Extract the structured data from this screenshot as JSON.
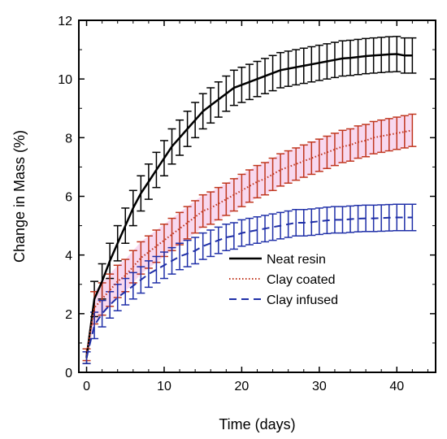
{
  "chart_data": {
    "type": "line",
    "xlabel": "Time (days)",
    "ylabel": "Change in Mass (%)",
    "xlim": [
      -1,
      45
    ],
    "ylim": [
      0,
      12
    ],
    "xticks": [
      "0",
      "10",
      "20",
      "30",
      "40"
    ],
    "yticks": [
      "0",
      "2",
      "4",
      "6",
      "8",
      "10",
      "12"
    ],
    "grid": false,
    "legend": "lower-right",
    "series": [
      {
        "name": "Neat resin",
        "color": "#000000",
        "style": "solid",
        "x": [
          0,
          1,
          2,
          3,
          4,
          5,
          6,
          7,
          8,
          9,
          10,
          11,
          12,
          13,
          14,
          15,
          16,
          17,
          18,
          19,
          20,
          21,
          22,
          23,
          24,
          25,
          26,
          27,
          28,
          29,
          30,
          31,
          32,
          33,
          34,
          35,
          36,
          37,
          38,
          39,
          40,
          41,
          42
        ],
        "y": [
          0.5,
          2.5,
          3.1,
          3.8,
          4.4,
          5.0,
          5.6,
          6.1,
          6.5,
          6.9,
          7.3,
          7.7,
          8.0,
          8.3,
          8.6,
          8.9,
          9.1,
          9.3,
          9.5,
          9.7,
          9.8,
          9.9,
          10.0,
          10.1,
          10.2,
          10.3,
          10.35,
          10.4,
          10.45,
          10.5,
          10.55,
          10.6,
          10.65,
          10.7,
          10.72,
          10.75,
          10.78,
          10.8,
          10.82,
          10.84,
          10.85,
          10.8,
          10.8
        ],
        "err": [
          0.2,
          0.6,
          0.6,
          0.6,
          0.6,
          0.6,
          0.6,
          0.6,
          0.6,
          0.6,
          0.6,
          0.6,
          0.6,
          0.6,
          0.6,
          0.6,
          0.6,
          0.6,
          0.6,
          0.6,
          0.6,
          0.6,
          0.6,
          0.6,
          0.6,
          0.6,
          0.6,
          0.6,
          0.6,
          0.6,
          0.6,
          0.6,
          0.6,
          0.6,
          0.6,
          0.6,
          0.6,
          0.6,
          0.6,
          0.6,
          0.6,
          0.6,
          0.6
        ]
      },
      {
        "name": "Clay coated",
        "color": "#c0361e",
        "shade": "#f2b8e2",
        "style": "dotted",
        "x": [
          0,
          1,
          2,
          3,
          4,
          5,
          6,
          7,
          8,
          9,
          10,
          11,
          12,
          13,
          14,
          15,
          16,
          17,
          18,
          19,
          20,
          21,
          22,
          23,
          24,
          25,
          26,
          27,
          28,
          29,
          30,
          31,
          32,
          33,
          34,
          35,
          36,
          37,
          38,
          39,
          40,
          41,
          42
        ],
        "y": [
          0.6,
          2.2,
          2.5,
          2.8,
          3.1,
          3.3,
          3.6,
          3.9,
          4.1,
          4.3,
          4.5,
          4.7,
          4.9,
          5.1,
          5.3,
          5.5,
          5.6,
          5.75,
          5.9,
          6.05,
          6.2,
          6.35,
          6.5,
          6.6,
          6.75,
          6.9,
          7.0,
          7.1,
          7.2,
          7.3,
          7.4,
          7.5,
          7.6,
          7.7,
          7.75,
          7.85,
          7.9,
          8.0,
          8.05,
          8.1,
          8.15,
          8.2,
          8.25
        ],
        "err": [
          0.2,
          0.55,
          0.55,
          0.55,
          0.55,
          0.55,
          0.55,
          0.55,
          0.55,
          0.55,
          0.55,
          0.55,
          0.55,
          0.55,
          0.55,
          0.55,
          0.55,
          0.55,
          0.55,
          0.55,
          0.55,
          0.55,
          0.55,
          0.55,
          0.55,
          0.55,
          0.55,
          0.55,
          0.55,
          0.55,
          0.55,
          0.55,
          0.55,
          0.55,
          0.55,
          0.55,
          0.55,
          0.55,
          0.55,
          0.55,
          0.55,
          0.55,
          0.55
        ]
      },
      {
        "name": "Clay infused",
        "color": "#1f2fa8",
        "style": "dashed",
        "x": [
          0,
          1,
          2,
          3,
          4,
          5,
          6,
          7,
          8,
          9,
          10,
          11,
          12,
          13,
          14,
          15,
          16,
          17,
          18,
          19,
          20,
          21,
          22,
          23,
          24,
          25,
          26,
          27,
          28,
          29,
          30,
          31,
          32,
          33,
          34,
          35,
          36,
          37,
          38,
          39,
          40,
          41,
          42
        ],
        "y": [
          0.5,
          1.6,
          2.0,
          2.3,
          2.55,
          2.75,
          2.95,
          3.15,
          3.35,
          3.5,
          3.65,
          3.8,
          3.95,
          4.05,
          4.15,
          4.3,
          4.4,
          4.5,
          4.6,
          4.65,
          4.75,
          4.8,
          4.85,
          4.9,
          4.95,
          5.0,
          5.05,
          5.1,
          5.1,
          5.12,
          5.15,
          5.18,
          5.2,
          5.2,
          5.22,
          5.24,
          5.25,
          5.25,
          5.26,
          5.27,
          5.28,
          5.28,
          5.28
        ],
        "err": [
          0.2,
          0.45,
          0.45,
          0.45,
          0.45,
          0.45,
          0.45,
          0.45,
          0.45,
          0.45,
          0.45,
          0.45,
          0.45,
          0.45,
          0.45,
          0.45,
          0.45,
          0.45,
          0.45,
          0.45,
          0.45,
          0.45,
          0.45,
          0.45,
          0.45,
          0.45,
          0.45,
          0.45,
          0.45,
          0.45,
          0.45,
          0.45,
          0.45,
          0.45,
          0.45,
          0.45,
          0.45,
          0.45,
          0.45,
          0.45,
          0.45,
          0.45,
          0.45
        ]
      }
    ]
  }
}
